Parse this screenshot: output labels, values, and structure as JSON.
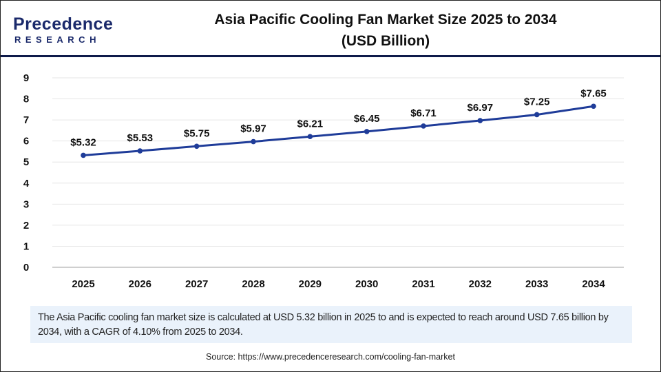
{
  "logo": {
    "brand": "Precedence",
    "sub": "RESEARCH"
  },
  "header": {
    "title_line1": "Asia Pacific Cooling Fan Market Size 2025 to 2034",
    "title_line2": "(USD Billion)"
  },
  "chart_data": {
    "type": "line",
    "title": "Asia Pacific Cooling Fan Market Size 2025 to 2034 (USD Billion)",
    "categories": [
      "2025",
      "2026",
      "2027",
      "2028",
      "2029",
      "2030",
      "2031",
      "2032",
      "2033",
      "2034"
    ],
    "values": [
      5.32,
      5.53,
      5.75,
      5.97,
      6.21,
      6.45,
      6.71,
      6.97,
      7.25,
      7.65
    ],
    "data_labels": [
      "$5.32",
      "$5.53",
      "$5.75",
      "$5.97",
      "$6.21",
      "$6.45",
      "$6.71",
      "$6.97",
      "$7.25",
      "$7.65"
    ],
    "yticks": [
      "0",
      "1",
      "2",
      "3",
      "4",
      "5",
      "6",
      "7",
      "8",
      "9"
    ],
    "ylim": [
      0,
      9
    ],
    "grid": true,
    "line_color": "#1f3c99"
  },
  "info": {
    "text": "The Asia Pacific cooling fan market size is calculated at USD 5.32 billion in 2025 to and is expected to reach around USD 7.65 billion by 2034, with a CAGR of 4.10% from 2025 to 2034."
  },
  "source": {
    "text": "Source: https://www.precedenceresearch.com/cooling-fan-market"
  }
}
